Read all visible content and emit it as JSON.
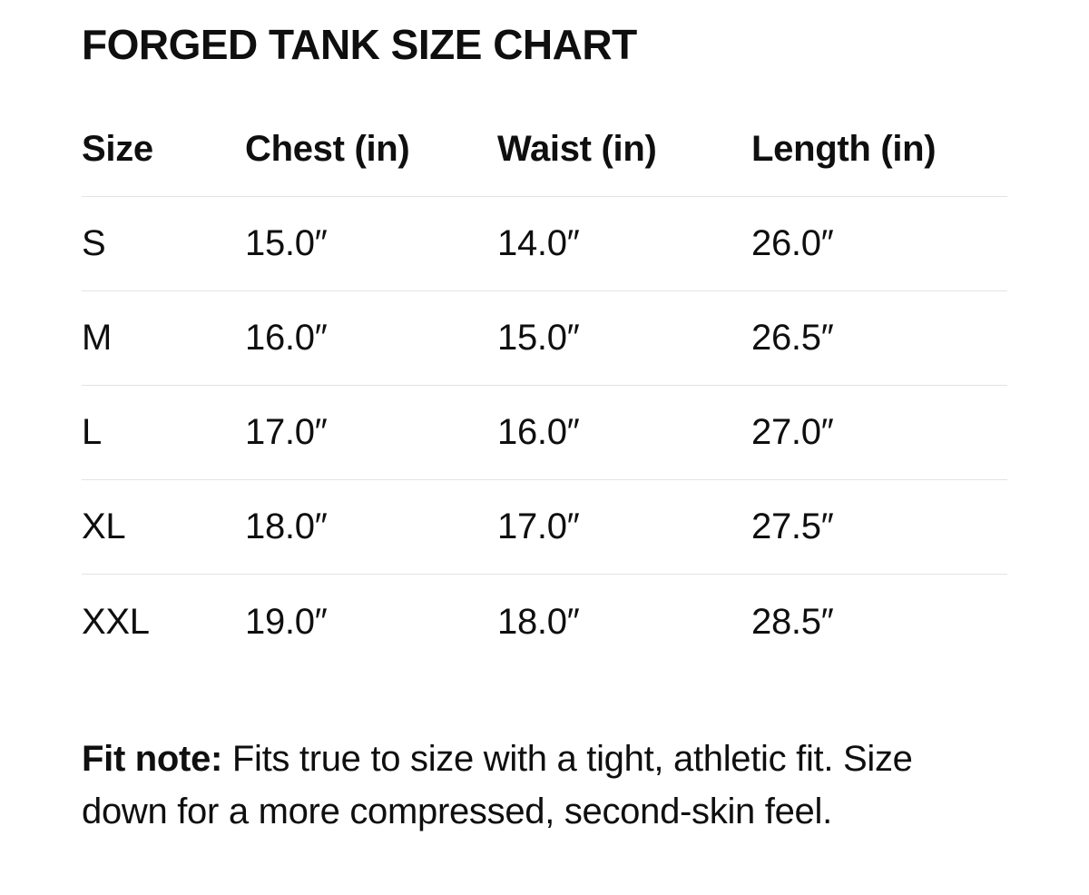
{
  "page": {
    "background_color": "#ffffff",
    "text_color": "#0f0f0f",
    "divider_color": "#e3e3e3"
  },
  "title": "FORGED TANK SIZE CHART",
  "table": {
    "columns": [
      "Size",
      "Chest (in)",
      "Waist (in)",
      "Length (in)"
    ],
    "rows": [
      {
        "size": "S",
        "chest": "15.0″",
        "waist": "14.0″",
        "length": "26.0″"
      },
      {
        "size": "M",
        "chest": "16.0″",
        "waist": "15.0″",
        "length": "26.5″"
      },
      {
        "size": "L",
        "chest": "17.0″",
        "waist": "16.0″",
        "length": "27.0″"
      },
      {
        "size": "XL",
        "chest": "18.0″",
        "waist": "17.0″",
        "length": "27.5″"
      },
      {
        "size": "XXL",
        "chest": "19.0″",
        "waist": "18.0″",
        "length": "28.5″"
      }
    ]
  },
  "fit_note": {
    "label": "Fit note:",
    "text": " Fits true to size with a tight, athletic fit. Size down for a more compressed, second-skin feel."
  }
}
